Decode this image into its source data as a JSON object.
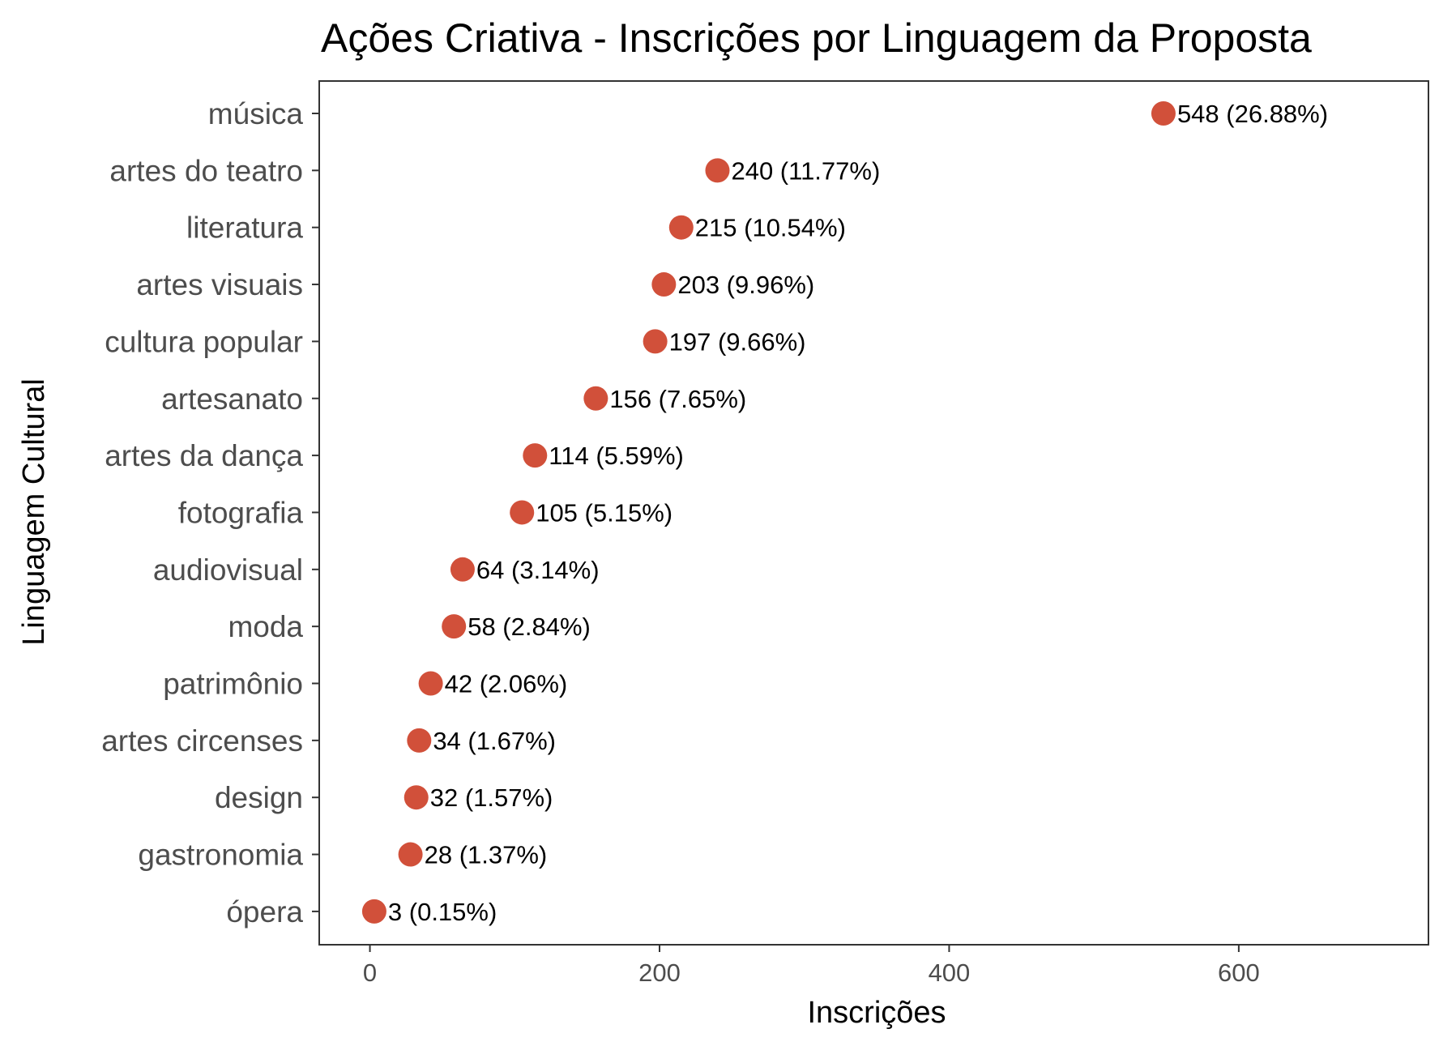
{
  "chart_data": {
    "type": "scatter",
    "title": "Ações Criativa - Inscrições por Linguagem da Proposta",
    "xlabel": "Inscrições",
    "ylabel": "Linguagem Cultural",
    "xlim": [
      -35,
      731
    ],
    "x_ticks": [
      "0",
      "200",
      "400",
      "600"
    ],
    "x_tick_values": [
      0,
      200,
      400,
      600
    ],
    "grid": false,
    "point_color": "#d1503a",
    "categories": [
      "música",
      "artes do teatro",
      "literatura",
      "artes visuais",
      "cultura popular",
      "artesanato",
      "artes da dança",
      "fotografia",
      "audiovisual",
      "moda",
      "patrimônio",
      "artes circenses",
      "design",
      "gastronomia",
      "ópera"
    ],
    "values": [
      548,
      240,
      215,
      203,
      197,
      156,
      114,
      105,
      64,
      58,
      42,
      34,
      32,
      28,
      3
    ],
    "labels": [
      "548 (26.88%)",
      "240 (11.77%)",
      "215 (10.54%)",
      "203 (9.96%)",
      "197 (9.66%)",
      "156 (7.65%)",
      "114 (5.59%)",
      "105 (5.15%)",
      "64 (3.14%)",
      "58 (2.84%)",
      "42 (2.06%)",
      "34 (1.67%)",
      "32 (1.57%)",
      "28 (1.37%)",
      "3 (0.15%)"
    ]
  }
}
